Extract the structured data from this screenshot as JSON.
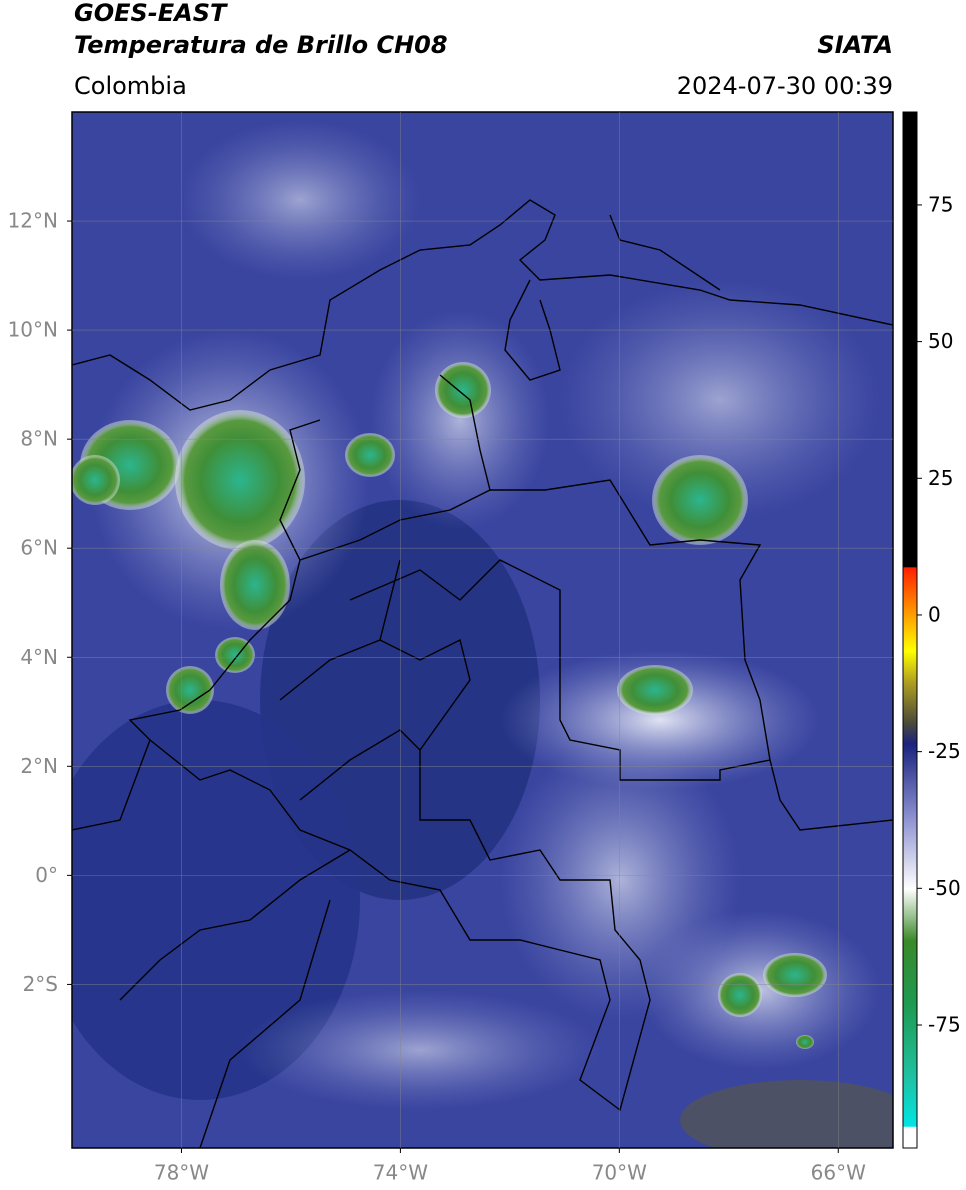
{
  "header": {
    "title": "GOES-EAST",
    "subtitle": "Temperatura de Brillo CH08",
    "region": "Colombia",
    "source": "SIATA",
    "datetime": "2024-07-30 00:39"
  },
  "map": {
    "lat_range": [
      -5,
      14
    ],
    "lon_range": [
      -80,
      -65
    ],
    "lat_ticks": [
      {
        "value": 12,
        "label": "12°N"
      },
      {
        "value": 10,
        "label": "10°N"
      },
      {
        "value": 8,
        "label": "8°N"
      },
      {
        "value": 6,
        "label": "6°N"
      },
      {
        "value": 4,
        "label": "4°N"
      },
      {
        "value": 2,
        "label": "2°N"
      },
      {
        "value": 0,
        "label": "0°"
      },
      {
        "value": -2,
        "label": "2°S"
      }
    ],
    "lon_ticks": [
      {
        "value": -78,
        "label": "78°W"
      },
      {
        "value": -74,
        "label": "74°W"
      },
      {
        "value": -70,
        "label": "70°W"
      },
      {
        "value": -66,
        "label": "66°W"
      }
    ]
  },
  "colorbar": {
    "range": [
      -97.5,
      92
    ],
    "ticks": [
      75,
      50,
      25,
      0,
      -25,
      -50,
      -75
    ]
  }
}
